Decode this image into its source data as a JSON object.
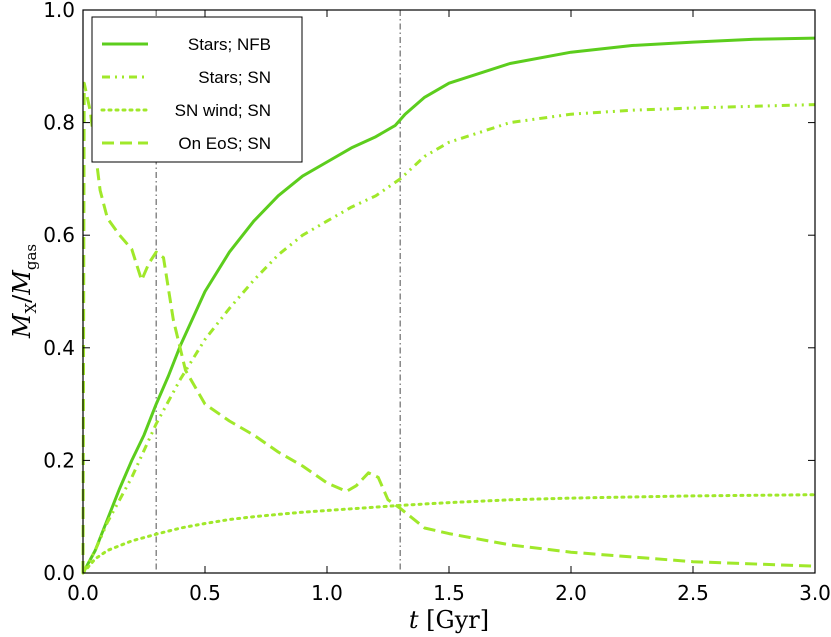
{
  "chart_data": {
    "type": "line",
    "title": "",
    "xlabel": "t [Gyr]",
    "ylabel": "M_X / M_gas",
    "xlim": [
      0.0,
      3.0
    ],
    "ylim": [
      0.0,
      1.0
    ],
    "x_ticks": [
      0.0,
      0.5,
      1.0,
      1.5,
      2.0,
      2.5,
      3.0
    ],
    "x_tick_labels": [
      "0.0",
      "0.5",
      "1.0",
      "1.5",
      "2.0",
      "2.5",
      "3.0"
    ],
    "y_ticks": [
      0.0,
      0.2,
      0.4,
      0.6,
      0.8,
      1.0
    ],
    "y_tick_labels": [
      "0.0",
      "0.2",
      "0.4",
      "0.6",
      "0.8",
      "1.0"
    ],
    "grid": false,
    "legend_position": "top-left",
    "vertical_lines": [
      0.3,
      1.3
    ],
    "series": [
      {
        "name": "Stars; NFB",
        "style": "solid",
        "color": "#5ccd1d",
        "points": [
          [
            0.0,
            0.0
          ],
          [
            0.05,
            0.04
          ],
          [
            0.1,
            0.095
          ],
          [
            0.15,
            0.15
          ],
          [
            0.2,
            0.2
          ],
          [
            0.25,
            0.245
          ],
          [
            0.3,
            0.3
          ],
          [
            0.35,
            0.35
          ],
          [
            0.4,
            0.405
          ],
          [
            0.5,
            0.5
          ],
          [
            0.6,
            0.57
          ],
          [
            0.7,
            0.625
          ],
          [
            0.8,
            0.67
          ],
          [
            0.9,
            0.705
          ],
          [
            1.0,
            0.73
          ],
          [
            1.1,
            0.755
          ],
          [
            1.2,
            0.775
          ],
          [
            1.28,
            0.795
          ],
          [
            1.32,
            0.815
          ],
          [
            1.4,
            0.845
          ],
          [
            1.5,
            0.87
          ],
          [
            1.75,
            0.905
          ],
          [
            2.0,
            0.925
          ],
          [
            2.25,
            0.937
          ],
          [
            2.5,
            0.943
          ],
          [
            2.75,
            0.948
          ],
          [
            3.0,
            0.95
          ]
        ]
      },
      {
        "name": "Stars; SN",
        "style": "dash-dot-dot",
        "color": "#a0e82a",
        "points": [
          [
            0.0,
            0.0
          ],
          [
            0.05,
            0.04
          ],
          [
            0.1,
            0.09
          ],
          [
            0.2,
            0.17
          ],
          [
            0.3,
            0.265
          ],
          [
            0.4,
            0.345
          ],
          [
            0.5,
            0.415
          ],
          [
            0.6,
            0.47
          ],
          [
            0.7,
            0.52
          ],
          [
            0.8,
            0.565
          ],
          [
            0.9,
            0.6
          ],
          [
            1.0,
            0.625
          ],
          [
            1.1,
            0.65
          ],
          [
            1.2,
            0.67
          ],
          [
            1.3,
            0.7
          ],
          [
            1.4,
            0.74
          ],
          [
            1.5,
            0.765
          ],
          [
            1.75,
            0.8
          ],
          [
            2.0,
            0.815
          ],
          [
            2.25,
            0.822
          ],
          [
            2.5,
            0.826
          ],
          [
            2.75,
            0.829
          ],
          [
            3.0,
            0.832
          ]
        ]
      },
      {
        "name": "SN wind; SN",
        "style": "dotted",
        "color": "#a0e82a",
        "points": [
          [
            0.0,
            0.0
          ],
          [
            0.05,
            0.025
          ],
          [
            0.1,
            0.04
          ],
          [
            0.2,
            0.057
          ],
          [
            0.3,
            0.069
          ],
          [
            0.4,
            0.08
          ],
          [
            0.5,
            0.088
          ],
          [
            0.6,
            0.095
          ],
          [
            0.7,
            0.1
          ],
          [
            0.8,
            0.104
          ],
          [
            0.9,
            0.108
          ],
          [
            1.0,
            0.111
          ],
          [
            1.1,
            0.114
          ],
          [
            1.2,
            0.117
          ],
          [
            1.3,
            0.12
          ],
          [
            1.5,
            0.125
          ],
          [
            1.75,
            0.13
          ],
          [
            2.0,
            0.133
          ],
          [
            2.25,
            0.135
          ],
          [
            2.5,
            0.137
          ],
          [
            2.75,
            0.138
          ],
          [
            3.0,
            0.139
          ]
        ]
      },
      {
        "name": "On EoS; SN",
        "style": "dashed",
        "color": "#a0e82a",
        "points": [
          [
            0.0,
            0.0
          ],
          [
            0.005,
            0.87
          ],
          [
            0.03,
            0.82
          ],
          [
            0.07,
            0.68
          ],
          [
            0.1,
            0.63
          ],
          [
            0.15,
            0.6
          ],
          [
            0.2,
            0.575
          ],
          [
            0.24,
            0.52
          ],
          [
            0.27,
            0.55
          ],
          [
            0.3,
            0.57
          ],
          [
            0.33,
            0.56
          ],
          [
            0.37,
            0.45
          ],
          [
            0.42,
            0.36
          ],
          [
            0.5,
            0.3
          ],
          [
            0.6,
            0.27
          ],
          [
            0.7,
            0.245
          ],
          [
            0.8,
            0.215
          ],
          [
            0.9,
            0.19
          ],
          [
            1.0,
            0.16
          ],
          [
            1.08,
            0.145
          ],
          [
            1.12,
            0.155
          ],
          [
            1.17,
            0.178
          ],
          [
            1.21,
            0.17
          ],
          [
            1.25,
            0.13
          ],
          [
            1.3,
            0.115
          ],
          [
            1.4,
            0.08
          ],
          [
            1.5,
            0.07
          ],
          [
            1.75,
            0.05
          ],
          [
            2.0,
            0.037
          ],
          [
            2.5,
            0.02
          ],
          [
            3.0,
            0.012
          ]
        ]
      }
    ]
  }
}
